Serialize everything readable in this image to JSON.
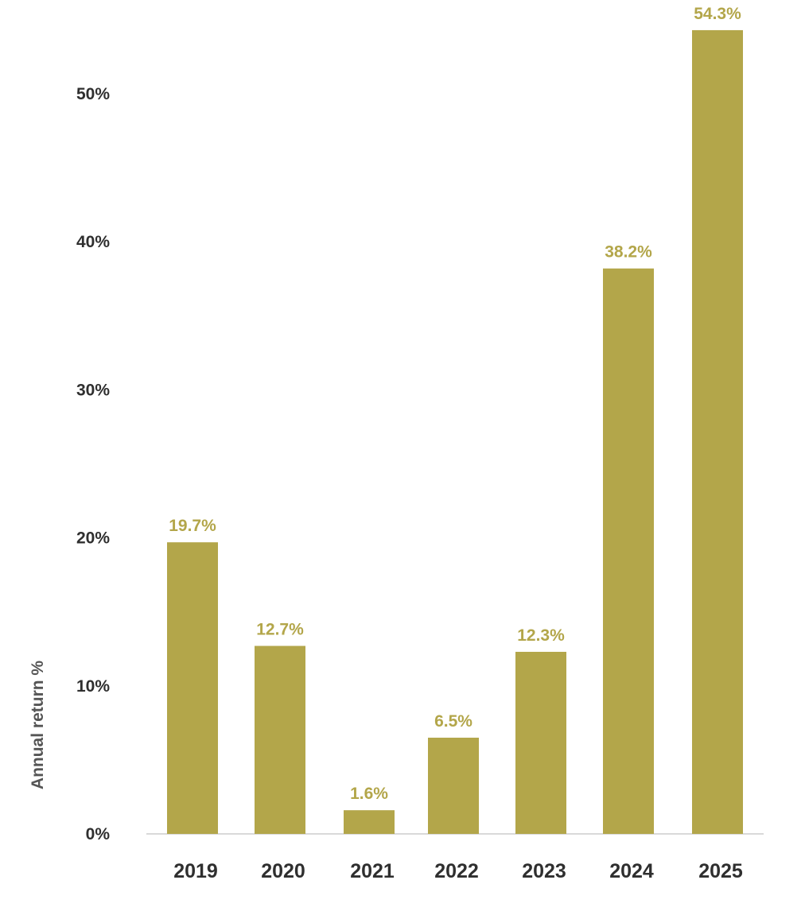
{
  "chart_data": {
    "type": "bar",
    "title": "",
    "xlabel": "",
    "ylabel": "Annual return %",
    "categories": [
      "2019",
      "2020",
      "2021",
      "2022",
      "2023",
      "2024",
      "2025"
    ],
    "values": [
      19.7,
      12.7,
      1.6,
      6.5,
      12.3,
      38.2,
      54.3
    ],
    "data_labels": [
      "19.7%",
      "12.7%",
      "1.6%",
      "6.5%",
      "12.3%",
      "38.2%",
      "54.3%"
    ],
    "yticks": [
      0,
      10,
      20,
      30,
      40,
      50
    ],
    "ytick_labels": [
      "0%",
      "10%",
      "20%",
      "30%",
      "40%",
      "50%"
    ],
    "ylim": [
      0,
      55
    ],
    "grid": false,
    "legend": "none",
    "colors": {
      "bar": "#b3a64a",
      "data_label": "#b3a64a",
      "axis_line": "#d9d9d9"
    }
  }
}
